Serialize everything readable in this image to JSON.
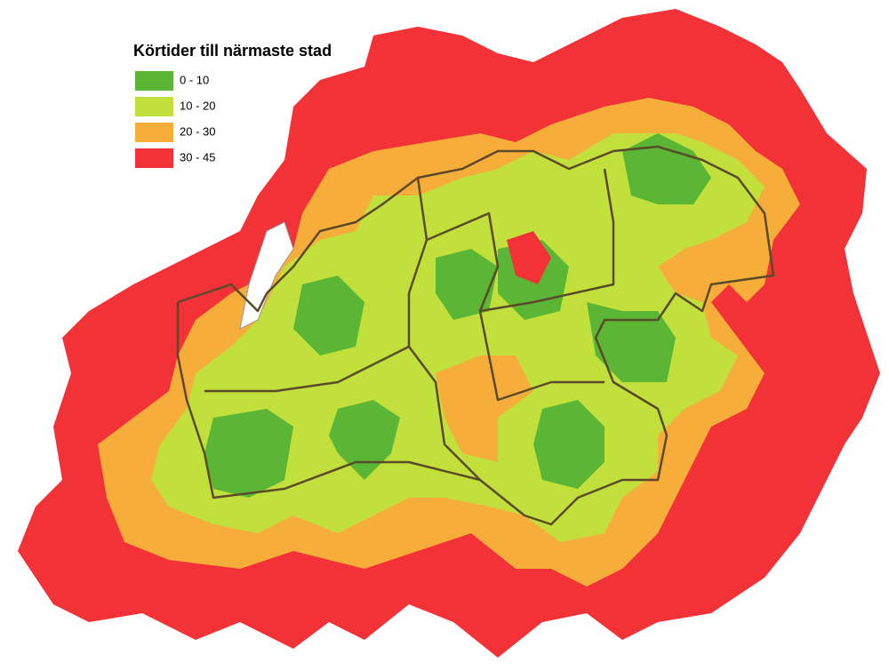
{
  "legend": {
    "title": "Körtider till närmaste stad",
    "items": [
      {
        "label": "0 - 10",
        "color": "#5ab634"
      },
      {
        "label": "10 - 20",
        "color": "#c2e03b"
      },
      {
        "label": "20 - 30",
        "color": "#f7ad3a"
      },
      {
        "label": "30 - 45",
        "color": "#f23236"
      }
    ]
  }
}
